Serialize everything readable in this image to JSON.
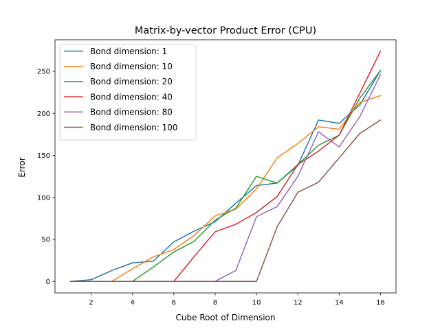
{
  "chart_data": {
    "type": "line",
    "title": "Matrix-by-vector Product Error (CPU)",
    "xlabel": "Cube Root of Dimension",
    "ylabel": "Error",
    "xlim": [
      0.25,
      16.75
    ],
    "ylim": [
      -13.7,
      287.5
    ],
    "xticks": [
      2,
      4,
      6,
      8,
      10,
      12,
      14,
      16
    ],
    "yticks": [
      0,
      50,
      100,
      150,
      200,
      250
    ],
    "grid": false,
    "legend_position": "top-left",
    "x": [
      1,
      2,
      3,
      4,
      5,
      6,
      7,
      8,
      9,
      10,
      11,
      12,
      13,
      14,
      15,
      16
    ],
    "series": [
      {
        "name": "Bond dimension: 1",
        "color": "#1f77b4",
        "values": [
          0,
          2,
          13,
          22,
          24,
          47,
          60,
          71,
          93,
          114,
          117,
          138,
          192,
          188,
          210,
          251
        ]
      },
      {
        "name": "Bond dimension: 10",
        "color": "#ff7f0e",
        "values": [
          0,
          0,
          0,
          15,
          29,
          38,
          55,
          78,
          86,
          110,
          147,
          164,
          184,
          181,
          213,
          221
        ]
      },
      {
        "name": "Bond dimension: 20",
        "color": "#2ca02c",
        "values": [
          0,
          0,
          0,
          0,
          17,
          35,
          48,
          73,
          87,
          125,
          117,
          139,
          162,
          174,
          218,
          251
        ]
      },
      {
        "name": "Bond dimension: 40",
        "color": "#d62728",
        "values": [
          0,
          0,
          0,
          0,
          0,
          0,
          30,
          59,
          68,
          82,
          101,
          139,
          155,
          174,
          224,
          274
        ]
      },
      {
        "name": "Bond dimension: 80",
        "color": "#9467bd",
        "values": [
          0,
          0,
          0,
          0,
          0,
          0,
          0,
          0,
          13,
          77,
          89,
          125,
          178,
          160,
          196,
          246
        ]
      },
      {
        "name": "Bond dimension: 100",
        "color": "#8c564b",
        "values": [
          0,
          0,
          0,
          0,
          0,
          0,
          0,
          0,
          0,
          0,
          65,
          106,
          118,
          147,
          176,
          192
        ]
      }
    ]
  }
}
